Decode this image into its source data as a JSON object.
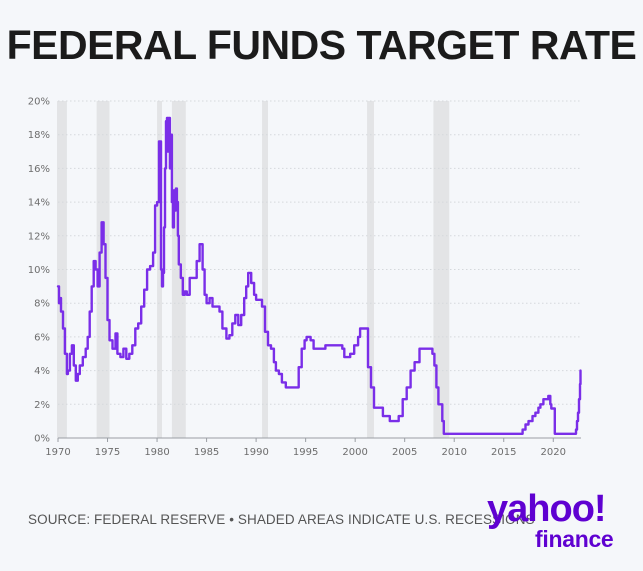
{
  "header": {
    "title": "FEDERAL FUNDS TARGET RATE"
  },
  "footer": {
    "source": "SOURCE: FEDERAL RESERVE • SHADED AREAS INDICATE U.S. RECESSIONS"
  },
  "logo": {
    "word": "yahoo!",
    "sub": "finance"
  },
  "colors": {
    "line": "#7a2ee8",
    "recession": "#e3e4e6",
    "grid": "#d5d8dc",
    "logo": "#5f01d1"
  },
  "chart_data": {
    "type": "line",
    "title": "FEDERAL FUNDS TARGET RATE",
    "xlabel": "",
    "ylabel": "",
    "xlim": [
      1970,
      2022.8
    ],
    "ylim": [
      0,
      20
    ],
    "x_ticks": [
      1970,
      1975,
      1980,
      1985,
      1990,
      1995,
      2000,
      2005,
      2010,
      2015,
      2020
    ],
    "y_ticks": [
      0,
      2,
      4,
      6,
      8,
      10,
      12,
      14,
      16,
      18,
      20
    ],
    "y_tick_labels": [
      "0%",
      "2%",
      "4%",
      "6%",
      "8%",
      "10%",
      "12%",
      "14%",
      "16%",
      "18%",
      "20%"
    ],
    "recessions": [
      [
        1969.9,
        1970.9
      ],
      [
        1973.9,
        1975.2
      ],
      [
        1980.0,
        1980.5
      ],
      [
        1981.5,
        1982.9
      ],
      [
        1990.6,
        1991.2
      ],
      [
        2001.2,
        2001.9
      ],
      [
        2007.9,
        2009.5
      ]
    ],
    "series": [
      {
        "name": "Federal funds target rate",
        "x": [
          1970.0,
          1970.1,
          1970.2,
          1970.3,
          1970.5,
          1970.7,
          1970.9,
          1971.0,
          1971.2,
          1971.4,
          1971.6,
          1971.8,
          1972.0,
          1972.2,
          1972.5,
          1972.8,
          1973.0,
          1973.2,
          1973.4,
          1973.6,
          1973.8,
          1974.0,
          1974.2,
          1974.4,
          1974.6,
          1974.8,
          1975.0,
          1975.2,
          1975.5,
          1975.8,
          1976.0,
          1976.3,
          1976.6,
          1976.9,
          1977.2,
          1977.5,
          1977.8,
          1978.1,
          1978.4,
          1978.7,
          1979.0,
          1979.3,
          1979.6,
          1979.8,
          1980.0,
          1980.2,
          1980.4,
          1980.5,
          1980.6,
          1980.7,
          1980.8,
          1980.9,
          1981.0,
          1981.1,
          1981.2,
          1981.3,
          1981.4,
          1981.5,
          1981.6,
          1981.7,
          1981.8,
          1981.9,
          1982.0,
          1982.1,
          1982.2,
          1982.4,
          1982.6,
          1982.8,
          1983.0,
          1983.3,
          1983.6,
          1984.0,
          1984.3,
          1984.6,
          1984.8,
          1985.0,
          1985.3,
          1985.6,
          1986.0,
          1986.3,
          1986.6,
          1987.0,
          1987.3,
          1987.6,
          1987.9,
          1988.2,
          1988.5,
          1988.8,
          1989.0,
          1989.2,
          1989.5,
          1989.8,
          1990.0,
          1990.3,
          1990.6,
          1990.9,
          1991.2,
          1991.5,
          1991.8,
          1992.0,
          1992.3,
          1992.6,
          1993.0,
          1994.0,
          1994.3,
          1994.6,
          1994.9,
          1995.1,
          1995.5,
          1995.8,
          1996.1,
          1997.0,
          1997.2,
          1998.7,
          1998.9,
          1999.5,
          1999.9,
          2000.3,
          2000.5,
          2001.0,
          2001.3,
          2001.6,
          2001.9,
          2002.8,
          2003.5,
          2004.4,
          2004.8,
          2005.2,
          2005.6,
          2006.0,
          2006.5,
          2007.6,
          2007.8,
          2008.0,
          2008.2,
          2008.4,
          2008.8,
          2008.95,
          2015.9,
          2016.9,
          2017.2,
          2017.5,
          2017.9,
          2018.2,
          2018.5,
          2018.7,
          2019.0,
          2019.5,
          2019.7,
          2019.8,
          2020.15,
          2022.1,
          2022.3,
          2022.4,
          2022.5,
          2022.6,
          2022.7,
          2022.75
        ],
        "values": [
          9.0,
          8.0,
          8.3,
          7.5,
          6.5,
          5.0,
          3.8,
          4.0,
          5.0,
          5.5,
          4.3,
          3.4,
          3.8,
          4.3,
          4.8,
          5.3,
          6.0,
          7.5,
          9.0,
          10.5,
          10.0,
          9.0,
          11.0,
          12.8,
          11.5,
          9.5,
          7.0,
          5.8,
          5.3,
          6.2,
          5.0,
          4.8,
          5.3,
          4.7,
          5.0,
          5.5,
          6.5,
          6.8,
          7.8,
          8.8,
          10.0,
          10.2,
          11.0,
          13.8,
          14.0,
          17.6,
          10.0,
          9.0,
          9.8,
          12.5,
          16.0,
          18.8,
          19.0,
          17.0,
          19.0,
          16.0,
          18.0,
          14.0,
          12.5,
          14.7,
          13.5,
          14.8,
          14.0,
          12.0,
          10.3,
          9.5,
          8.5,
          8.7,
          8.5,
          9.5,
          9.5,
          10.5,
          11.5,
          10.0,
          8.5,
          8.0,
          8.3,
          7.8,
          7.8,
          7.5,
          6.5,
          5.9,
          6.1,
          6.8,
          7.3,
          6.7,
          7.3,
          8.3,
          9.0,
          9.8,
          9.2,
          8.5,
          8.2,
          8.2,
          7.8,
          6.3,
          5.5,
          5.3,
          4.5,
          4.0,
          3.8,
          3.3,
          3.0,
          3.0,
          4.2,
          5.3,
          5.8,
          6.0,
          5.8,
          5.3,
          5.3,
          5.5,
          5.5,
          5.3,
          4.8,
          5.0,
          5.5,
          6.0,
          6.5,
          6.5,
          4.2,
          3.0,
          1.8,
          1.3,
          1.0,
          1.3,
          2.3,
          3.0,
          4.0,
          4.5,
          5.3,
          5.3,
          5.0,
          4.3,
          3.0,
          2.0,
          1.0,
          0.25,
          0.25,
          0.5,
          0.8,
          1.0,
          1.3,
          1.5,
          1.8,
          2.0,
          2.3,
          2.5,
          2.0,
          1.75,
          0.25,
          0.25,
          0.5,
          1.0,
          1.5,
          2.3,
          3.2,
          4.0
        ]
      }
    ]
  }
}
